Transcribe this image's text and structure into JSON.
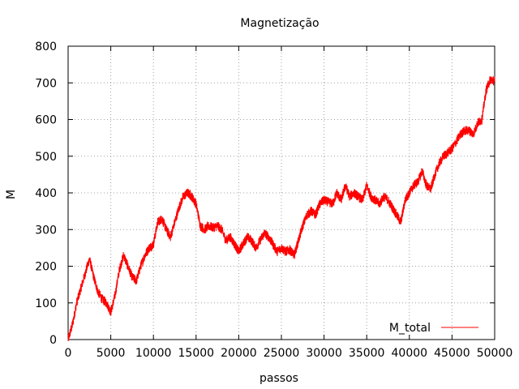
{
  "chart_data": {
    "type": "line",
    "title": "Magnetização",
    "xlabel": "passos",
    "ylabel": "M",
    "xlim": [
      0,
      50000
    ],
    "ylim": [
      0,
      800
    ],
    "x_ticks": [
      "0",
      "5000",
      "10000",
      "15000",
      "20000",
      "25000",
      "30000",
      "35000",
      "40000",
      "45000",
      "50000"
    ],
    "y_ticks": [
      "0",
      "100",
      "200",
      "300",
      "400",
      "500",
      "600",
      "700",
      "800"
    ],
    "grid": true,
    "legend_position": "bottom-right",
    "series": [
      {
        "name": "M_total",
        "color": "#ff0000",
        "x": [
          0,
          500,
          1000,
          1500,
          2000,
          2500,
          3000,
          3500,
          4000,
          4500,
          5000,
          5500,
          6000,
          6500,
          7000,
          7500,
          8000,
          8500,
          9000,
          9500,
          10000,
          10500,
          11000,
          11500,
          12000,
          12500,
          13000,
          13500,
          14000,
          14500,
          15000,
          15500,
          16000,
          16500,
          17000,
          17500,
          18000,
          18500,
          19000,
          19500,
          20000,
          20500,
          21000,
          21500,
          22000,
          22500,
          23000,
          23500,
          24000,
          24500,
          25000,
          25500,
          26000,
          26500,
          27000,
          27500,
          28000,
          28500,
          29000,
          29500,
          30000,
          30500,
          31000,
          31500,
          32000,
          32500,
          33000,
          33500,
          34000,
          34500,
          35000,
          35500,
          36000,
          36500,
          37000,
          37500,
          38000,
          38500,
          39000,
          39500,
          40000,
          40500,
          41000,
          41500,
          42000,
          42500,
          43000,
          43500,
          44000,
          44500,
          45000,
          45500,
          46000,
          46500,
          47000,
          47500,
          48000,
          48500,
          49000,
          49500,
          50000
        ],
        "values": [
          0,
          40,
          100,
          140,
          180,
          220,
          170,
          130,
          110,
          100,
          75,
          120,
          190,
          230,
          200,
          170,
          160,
          200,
          230,
          250,
          260,
          320,
          330,
          300,
          280,
          320,
          360,
          390,
          400,
          390,
          370,
          310,
          300,
          310,
          305,
          310,
          300,
          270,
          280,
          260,
          240,
          260,
          280,
          270,
          250,
          270,
          290,
          280,
          260,
          240,
          250,
          240,
          245,
          230,
          270,
          310,
          340,
          350,
          340,
          370,
          380,
          375,
          370,
          400,
          380,
          420,
          390,
          400,
          390,
          380,
          420,
          390,
          380,
          370,
          390,
          380,
          360,
          340,
          320,
          380,
          400,
          420,
          430,
          460,
          420,
          410,
          450,
          480,
          500,
          510,
          520,
          540,
          560,
          570,
          570,
          560,
          590,
          600,
          680,
          710,
          705
        ]
      }
    ]
  }
}
